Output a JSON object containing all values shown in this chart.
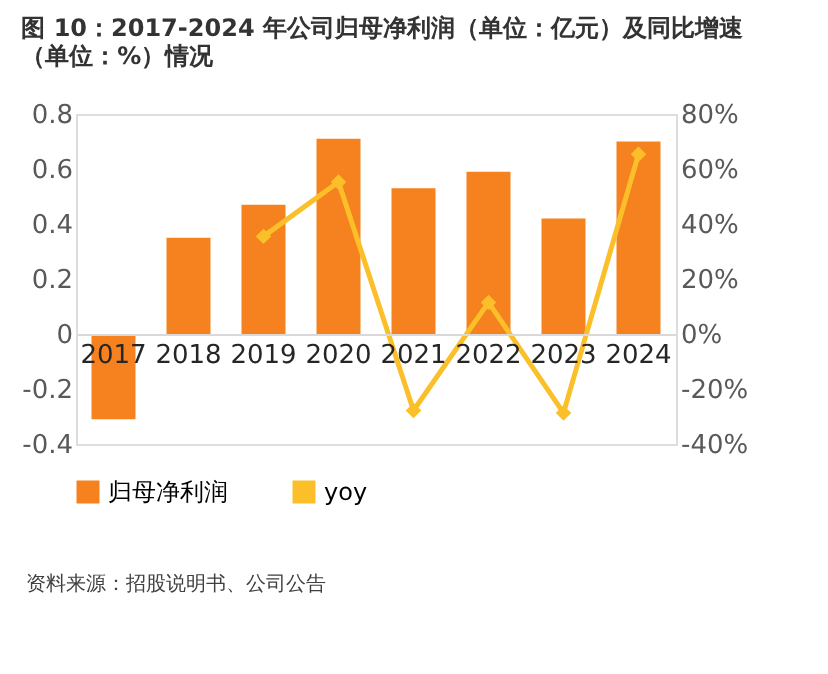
{
  "chart_data": {
    "type": "bar",
    "title": "图 10：2017-2024 年公司归母净利润（单位：亿元）及同比增速（单位：%）情况",
    "categories": [
      "2017",
      "2018",
      "2019",
      "2020",
      "2021",
      "2022",
      "2023",
      "2024"
    ],
    "series": [
      {
        "name": "归母净利润",
        "color": "#f5821f",
        "values": [
          -0.31,
          0.35,
          0.47,
          0.71,
          0.53,
          0.59,
          0.42,
          0.7
        ]
      },
      {
        "name": "yoy",
        "type": "line",
        "axis": "y2",
        "color": "#fbbf2a",
        "values": [
          null,
          null,
          35.5,
          55.3,
          -27.8,
          11.5,
          -28.7,
          65.4
        ]
      }
    ],
    "ylim": [
      -0.4,
      0.8
    ],
    "yticks": [
      -0.4,
      -0.2,
      0,
      0.2,
      0.4,
      0.6,
      0.8
    ],
    "y2lim": [
      -40,
      80
    ],
    "y2ticks": [
      {
        "value": -40,
        "label": "-40%"
      },
      {
        "value": -20,
        "label": "-20%"
      },
      {
        "value": 0,
        "label": "0%"
      },
      {
        "value": 20,
        "label": "20%"
      },
      {
        "value": 40,
        "label": "40%"
      },
      {
        "value": 60,
        "label": "60%"
      },
      {
        "value": 80,
        "label": "80%"
      }
    ],
    "grid": false,
    "legend": "bottom",
    "marker": "diamond",
    "annotations": [
      "资料来源：招股说明书、公司公告"
    ]
  }
}
